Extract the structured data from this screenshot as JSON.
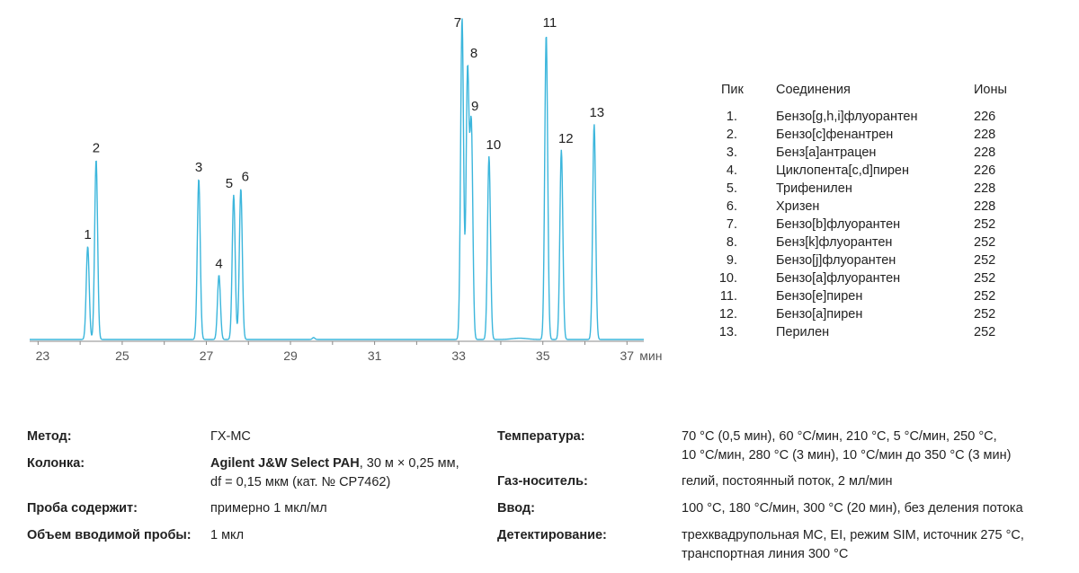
{
  "chart_data": {
    "type": "line",
    "title": "",
    "xlabel": "",
    "ylabel": "",
    "x_unit": "мин",
    "xlim": [
      22.8,
      37.4
    ],
    "x_ticks": [
      23,
      25,
      27,
      29,
      31,
      33,
      35,
      37
    ],
    "grid": false,
    "series_color": "#3cb6dc",
    "peaks": [
      {
        "label": "1",
        "rt": 24.18,
        "height": 0.29
      },
      {
        "label": "2",
        "rt": 24.38,
        "height": 0.56
      },
      {
        "label": "3",
        "rt": 26.82,
        "height": 0.5
      },
      {
        "label": "4",
        "rt": 27.3,
        "height": 0.2
      },
      {
        "label": "5",
        "rt": 27.65,
        "height": 0.45
      },
      {
        "label": "6",
        "rt": 27.82,
        "height": 0.47
      },
      {
        "label": "7",
        "rt": 33.08,
        "height": 1.0
      },
      {
        "label": "8",
        "rt": 33.21,
        "height": 0.83
      },
      {
        "label": "9",
        "rt": 33.3,
        "height": 0.66
      },
      {
        "label": "10",
        "rt": 33.72,
        "height": 0.57
      },
      {
        "label": "11",
        "rt": 35.08,
        "height": 0.95
      },
      {
        "label": "12",
        "rt": 35.44,
        "height": 0.59
      },
      {
        "label": "13",
        "rt": 36.22,
        "height": 0.67
      }
    ]
  },
  "legend": {
    "headers": {
      "num": "Пик",
      "name": "Соединения",
      "ions": "Ионы"
    },
    "rows": [
      {
        "num": "1.",
        "name": "Бензо[g,h,i]флуорантен",
        "ions": "226"
      },
      {
        "num": "2.",
        "name": "Бензо[c]фенантрен",
        "ions": "228"
      },
      {
        "num": "3.",
        "name": "Бенз[a]антрацен",
        "ions": "228"
      },
      {
        "num": "4.",
        "name": "Циклопента[c,d]пирен",
        "ions": "226"
      },
      {
        "num": "5.",
        "name": "Трифенилен",
        "ions": "228"
      },
      {
        "num": "6.",
        "name": "Хризен",
        "ions": "228"
      },
      {
        "num": "7.",
        "name": "Бензо[b]флуорантен",
        "ions": "252"
      },
      {
        "num": "8.",
        "name": "Бенз[k]флуорантен",
        "ions": "252"
      },
      {
        "num": "9.",
        "name": "Бензо[j]флуорантен",
        "ions": "252"
      },
      {
        "num": "10.",
        "name": "Бензо[a]флуорантен",
        "ions": "252"
      },
      {
        "num": "11.",
        "name": "Бензо[e]пирен",
        "ions": "252"
      },
      {
        "num": "12.",
        "name": "Бензо[a]пирен",
        "ions": "252"
      },
      {
        "num": "13.",
        "name": "Перилен",
        "ions": "252"
      }
    ]
  },
  "method": {
    "method_label": "Метод:",
    "method_value": "ГХ-МС",
    "column_label": "Колонка:",
    "column_value_bold": "Agilent J&W Select PAH",
    "column_value_rest": ", 30 м × 0,25 мм,",
    "column_value_line2": "df = 0,15 мкм (кат. № CP7462)",
    "sample_label": "Проба содержит:",
    "sample_value": "примерно 1 мкл/мл",
    "volume_label": "Объем вводимой пробы:",
    "volume_value": "1 мкл",
    "temp_label": "Температура:",
    "temp_value_line1": "70 °C (0,5 мин), 60 °C/мин, 210 °C, 5 °C/мин, 250 °C,",
    "temp_value_line2": "10 °C/мин, 280 °C (3 мин), 10 °C/мин до 350 °C (3 мин)",
    "carrier_label": "Газ-носитель:",
    "carrier_value": "гелий, постоянный поток, 2 мл/мин",
    "inlet_label": "Ввод:",
    "inlet_value": "100 °C, 180 °C/мин, 300 °C (20 мин), без деления потока",
    "detect_label": "Детектирование:",
    "detect_value_line1": "трехквадрупольная МС, EI, режим SIM, источник 275 °C,",
    "detect_value_line2": "транспортная линия 300 °C"
  }
}
